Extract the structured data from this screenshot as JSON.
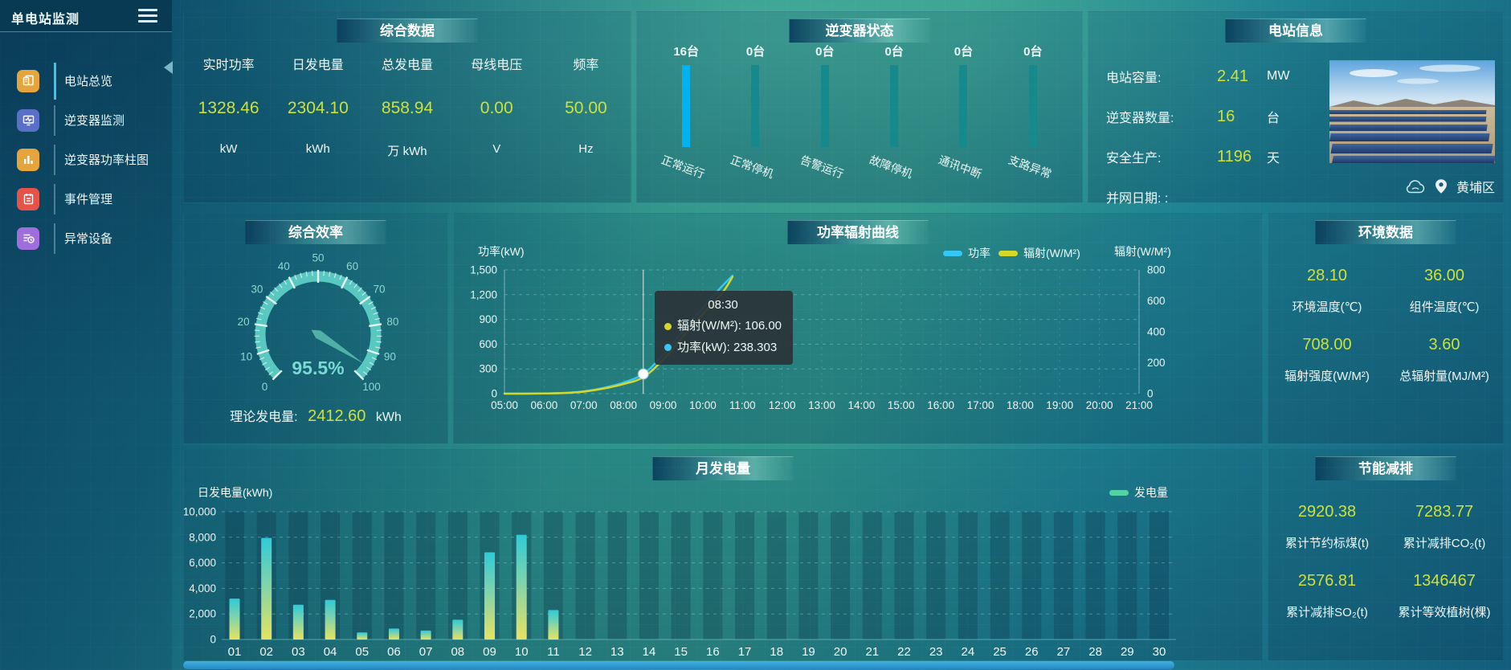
{
  "app": {
    "title": "单电站监测"
  },
  "sidebar": {
    "items": [
      {
        "label": "电站总览",
        "active": true
      },
      {
        "label": "逆变器监测",
        "active": false
      },
      {
        "label": "逆变器功率柱图",
        "active": false
      },
      {
        "label": "事件管理",
        "active": false
      },
      {
        "label": "异常设备",
        "active": false
      }
    ]
  },
  "summary": {
    "title": "综合数据",
    "metrics": [
      {
        "label": "实时功率",
        "value": "1328.46",
        "unit": "kW"
      },
      {
        "label": "日发电量",
        "value": "2304.10",
        "unit": "kWh"
      },
      {
        "label": "总发电量",
        "value": "858.94",
        "unit": "万 kWh"
      },
      {
        "label": "母线电压",
        "value": "0.00",
        "unit": "V"
      },
      {
        "label": "频率",
        "value": "50.00",
        "unit": "Hz"
      }
    ]
  },
  "inverter": {
    "title": "逆变器状态",
    "colors": {
      "highlight": "#00b2ef",
      "normal": "#16898c"
    },
    "bars": [
      {
        "count": "16台",
        "label": "正常运行",
        "highlight": true
      },
      {
        "count": "0台",
        "label": "正常停机",
        "highlight": false
      },
      {
        "count": "0台",
        "label": "告警运行",
        "highlight": false
      },
      {
        "count": "0台",
        "label": "故障停机",
        "highlight": false
      },
      {
        "count": "0台",
        "label": "通讯中断",
        "highlight": false
      },
      {
        "count": "0台",
        "label": "支路异常",
        "highlight": false
      }
    ]
  },
  "station": {
    "title": "电站信息",
    "rows": [
      {
        "label": "电站容量:",
        "value": "2.41",
        "unit": "MW"
      },
      {
        "label": "逆变器数量:",
        "value": "16",
        "unit": "台"
      },
      {
        "label": "安全生产:",
        "value": "1196",
        "unit": "天"
      },
      {
        "label": "并网日期: :",
        "value": "",
        "unit": ""
      }
    ],
    "location": "黄埔区"
  },
  "efficiency": {
    "title": "综合效率",
    "theory_label": "理论发电量:",
    "theory_value": "2412.60",
    "theory_unit": "kWh"
  },
  "curve": {
    "title": "功率辐射曲线",
    "tooltip": {
      "time": "08:30",
      "rows": [
        {
          "text": "辐射(W/M²): 106.00",
          "color": "#d4d82b"
        },
        {
          "text": "功率(kW): 238.303",
          "color": "#35c8f5"
        }
      ]
    }
  },
  "environment": {
    "title": "环境数据",
    "items": [
      {
        "value": "28.10",
        "label": "环境温度(℃)"
      },
      {
        "value": "36.00",
        "label": "组件温度(℃)"
      },
      {
        "value": "708.00",
        "label": "辐射强度(W/M²)"
      },
      {
        "value": "3.60",
        "label": "总辐射量(MJ/M²)"
      }
    ]
  },
  "monthly": {
    "title": "月发电量",
    "legend": "发电量"
  },
  "savings": {
    "title": "节能减排",
    "items": [
      {
        "value": "2920.38",
        "label": "累计节约标煤(t)"
      },
      {
        "value": "7283.77",
        "label": "累计减排CO₂(t)"
      },
      {
        "value": "2576.81",
        "label": "累计减排SO₂(t)"
      },
      {
        "value": "1346467",
        "label": "累计等效植树(棵)"
      }
    ]
  },
  "chart_data": [
    {
      "id": "efficiency_gauge",
      "type": "gauge",
      "min": 0,
      "max": 100,
      "value": 95.5,
      "unit": "%",
      "major_tick_step": 10,
      "minor_tick_step": 2,
      "arc_color": "#58c8c0",
      "label_color": "#8fd6cf"
    },
    {
      "id": "power_radiation",
      "type": "line",
      "title": "功率辐射曲线",
      "left_axis": {
        "label": "功率(kW)",
        "ticks": [
          0,
          300,
          600,
          900,
          1200,
          1500
        ],
        "max": 1500
      },
      "right_axis": {
        "label": "辐射(W/M²)",
        "ticks": [
          0,
          200,
          400,
          600,
          800
        ],
        "max": 800
      },
      "x_labels": [
        "05:00",
        "06:00",
        "07:00",
        "08:00",
        "09:00",
        "10:00",
        "11:00",
        "12:00",
        "13:00",
        "14:00",
        "15:00",
        "16:00",
        "17:00",
        "18:00",
        "19:00",
        "20:00",
        "21:00"
      ],
      "series": [
        {
          "name": "功率",
          "color": "#35c8f5",
          "axis": "left",
          "points": [
            [
              5,
              0
            ],
            [
              5.5,
              0
            ],
            [
              6,
              2
            ],
            [
              6.5,
              8
            ],
            [
              7,
              28
            ],
            [
              7.5,
              70
            ],
            [
              8,
              135
            ],
            [
              8.5,
              238.3
            ],
            [
              9,
              470
            ],
            [
              9.5,
              760
            ],
            [
              10,
              1040
            ],
            [
              10.5,
              1310
            ],
            [
              10.75,
              1430
            ]
          ]
        },
        {
          "name": "辐射(W/M²)",
          "color": "#d4d82b",
          "axis": "right",
          "points": [
            [
              5,
              0
            ],
            [
              5.5,
              0
            ],
            [
              6,
              1
            ],
            [
              6.5,
              4
            ],
            [
              7,
              13
            ],
            [
              7.5,
              33
            ],
            [
              8,
              62
            ],
            [
              8.5,
              106
            ],
            [
              9,
              220
            ],
            [
              9.5,
              370
            ],
            [
              10,
              515
            ],
            [
              10.5,
              655
            ],
            [
              10.75,
              755
            ]
          ]
        }
      ],
      "hover": {
        "x": 8.5,
        "power": 238.303,
        "radiation": 106
      }
    },
    {
      "id": "monthly_generation",
      "type": "bar",
      "ylabel": "日发电量(kWh)",
      "legend": "发电量",
      "categories": [
        "01",
        "02",
        "03",
        "04",
        "05",
        "06",
        "07",
        "08",
        "09",
        "10",
        "11",
        "12",
        "13",
        "14",
        "15",
        "16",
        "17",
        "18",
        "19",
        "20",
        "21",
        "22",
        "23",
        "24",
        "25",
        "26",
        "27",
        "28",
        "29",
        "30"
      ],
      "values": [
        3200,
        7950,
        2720,
        3100,
        550,
        860,
        700,
        1550,
        6820,
        8190,
        2300,
        0,
        0,
        0,
        0,
        0,
        0,
        0,
        0,
        0,
        0,
        0,
        0,
        0,
        0,
        0,
        0,
        0,
        0,
        0
      ],
      "ylim": [
        0,
        10000
      ],
      "yticks": [
        0,
        2000,
        4000,
        6000,
        8000,
        10000
      ],
      "bar_gradient": [
        "#e7e35f",
        "#7fd3ab",
        "#2ecbd6"
      ]
    }
  ]
}
